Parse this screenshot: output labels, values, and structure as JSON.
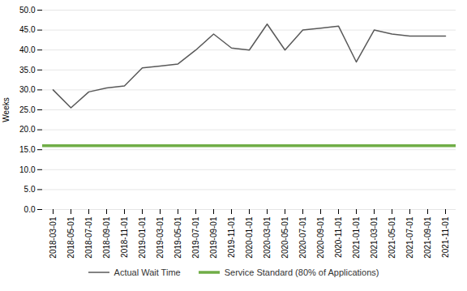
{
  "chart_data": {
    "type": "line",
    "categories": [
      "2018-03-01",
      "2018-05-01",
      "2018-07-01",
      "2018-09-01",
      "2018-11-01",
      "2019-01-01",
      "2019-03-01",
      "2019-05-01",
      "2019-07-01",
      "2019-09-01",
      "2019-11-01",
      "2020-01-01",
      "2020-03-01",
      "2020-05-01",
      "2020-07-01",
      "2020-09-01",
      "2020-11-01",
      "2021-01-01",
      "2021-03-01",
      "2021-05-01",
      "2021-07-01",
      "2021-09-01",
      "2021-11-01"
    ],
    "series": [
      {
        "name": "Actual Wait Time",
        "color": "#595959",
        "values": [
          30,
          25.5,
          29.5,
          30.5,
          31,
          35.5,
          36,
          36.5,
          40,
          44,
          40.5,
          40,
          46.5,
          40,
          45,
          45.5,
          46,
          37,
          45,
          44,
          43.5,
          43.5,
          43.5
        ]
      }
    ],
    "reference_lines": [
      {
        "name": "Service Standard (80% of Applications)",
        "color": "#70AD47",
        "value": 16
      }
    ],
    "ylabel": "Weeks",
    "ylim": [
      0,
      50
    ],
    "yticks": [
      {
        "value": 0,
        "label": "0.0"
      },
      {
        "value": 5,
        "label": "5.0"
      },
      {
        "value": 10,
        "label": "10.0"
      },
      {
        "value": 15,
        "label": "15.0"
      },
      {
        "value": 20,
        "label": "20.0"
      },
      {
        "value": 25,
        "label": "25.0"
      },
      {
        "value": 30,
        "label": "30.0"
      },
      {
        "value": 35,
        "label": "35.0"
      },
      {
        "value": 40,
        "label": "40.0"
      },
      {
        "value": 45,
        "label": "45.0"
      },
      {
        "value": 50,
        "label": "50.0"
      }
    ],
    "grid": true,
    "legend": "bottom"
  }
}
